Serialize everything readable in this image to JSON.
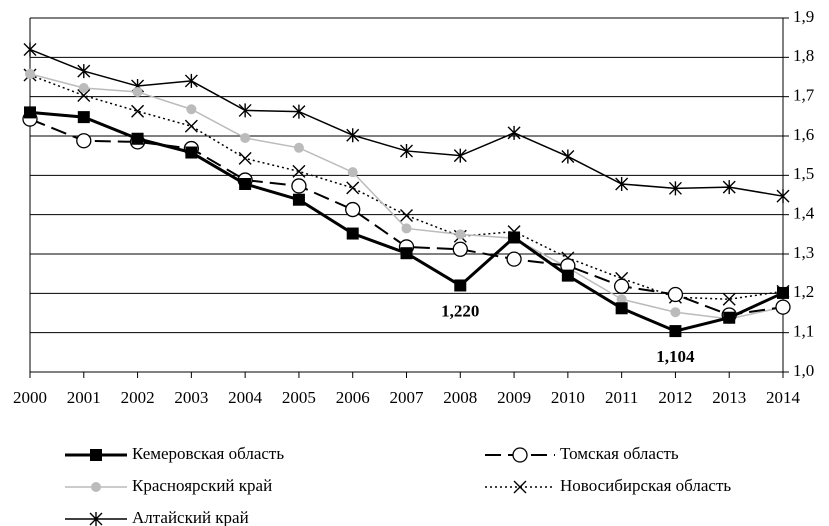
{
  "chart_data": {
    "type": "line",
    "categories": [
      "2000",
      "2001",
      "2002",
      "2003",
      "2004",
      "2005",
      "2006",
      "2007",
      "2008",
      "2009",
      "2010",
      "2011",
      "2012",
      "2013",
      "2014"
    ],
    "ylim": [
      1.0,
      1.9
    ],
    "yticks": [
      {
        "value": 1.0,
        "label": "1,0"
      },
      {
        "value": 1.1,
        "label": "1,1"
      },
      {
        "value": 1.2,
        "label": "1,2"
      },
      {
        "value": 1.3,
        "label": "1,3"
      },
      {
        "value": 1.4,
        "label": "1,4"
      },
      {
        "value": 1.5,
        "label": "1,5"
      },
      {
        "value": 1.6,
        "label": "1,6"
      },
      {
        "value": 1.7,
        "label": "1,7"
      },
      {
        "value": 1.8,
        "label": "1,8"
      },
      {
        "value": 1.9,
        "label": "1,9"
      }
    ],
    "y_axis_side": "right",
    "grid": true,
    "legend_position": "bottom",
    "series": [
      {
        "name": "Кемеровская область",
        "color": "#000000",
        "line_style": "solid",
        "line_width": 3,
        "marker": "square",
        "values": [
          1.66,
          1.648,
          1.593,
          1.558,
          1.478,
          1.438,
          1.352,
          1.302,
          1.22,
          1.342,
          1.245,
          1.162,
          1.104,
          1.138,
          1.201
        ],
        "value_labels": [
          null,
          null,
          null,
          null,
          null,
          null,
          null,
          null,
          "1,220",
          null,
          null,
          null,
          "1,104",
          null,
          null
        ]
      },
      {
        "name": "Томская область",
        "color": "#000000",
        "line_style": "dashed",
        "line_width": 2,
        "marker": "circle",
        "values": [
          1.643,
          1.588,
          1.585,
          1.568,
          1.488,
          1.473,
          1.413,
          1.318,
          1.312,
          1.287,
          1.27,
          1.218,
          1.197,
          1.145,
          1.165
        ]
      },
      {
        "name": "Красноярский край",
        "color": "#bbbbbb",
        "line_style": "solid",
        "line_width": 1.5,
        "marker": "dot",
        "values": [
          1.758,
          1.722,
          1.712,
          1.668,
          1.595,
          1.57,
          1.508,
          1.365,
          1.35,
          1.34,
          1.265,
          1.185,
          1.152,
          1.135,
          1.165
        ]
      },
      {
        "name": "Новосибирская область",
        "color": "#000000",
        "line_style": "dotted",
        "line_width": 1.5,
        "marker": "x",
        "values": [
          1.755,
          1.703,
          1.663,
          1.625,
          1.543,
          1.51,
          1.468,
          1.398,
          1.345,
          1.357,
          1.29,
          1.238,
          1.19,
          1.185,
          1.205
        ]
      },
      {
        "name": "Алтайский край",
        "color": "#000000",
        "line_style": "solid",
        "line_width": 1.5,
        "marker": "asterisk",
        "values": [
          1.82,
          1.765,
          1.727,
          1.74,
          1.665,
          1.662,
          1.602,
          1.562,
          1.55,
          1.608,
          1.548,
          1.478,
          1.467,
          1.47,
          1.447
        ]
      }
    ]
  }
}
